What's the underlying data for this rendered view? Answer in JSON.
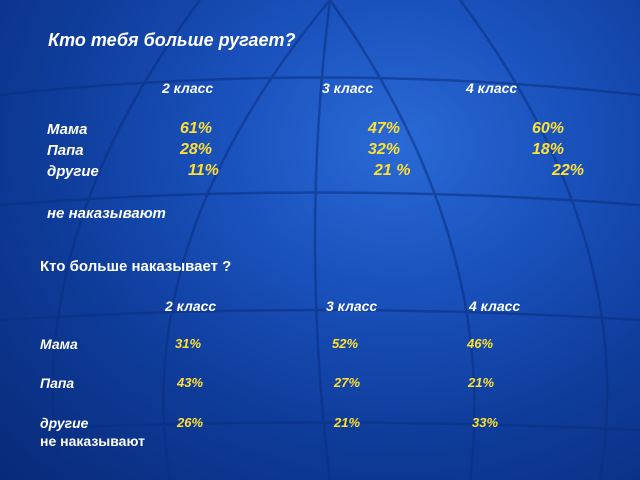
{
  "q1": {
    "title": "Кто тебя больше ругает?",
    "headers": [
      "2 класс",
      "3 класс",
      "4 класс"
    ],
    "rows": [
      {
        "label": "Мама",
        "values": [
          "61%",
          "47%",
          "60%"
        ]
      },
      {
        "label": "Папа",
        "values": [
          "28%",
          "32%",
          "18%"
        ]
      },
      {
        "label": "другие",
        "values": [
          "11%",
          "21 %",
          "22%"
        ]
      }
    ],
    "note": "не наказывают"
  },
  "q2": {
    "title": "Кто больше наказывает ?",
    "headers": [
      "2 класс",
      "3 класс",
      "4 класс"
    ],
    "rows": [
      {
        "label": "Мама",
        "values": [
          "31%",
          "52%",
          "46%"
        ]
      },
      {
        "label": "Папа",
        "values": [
          "43%",
          "27%",
          "21%"
        ]
      },
      {
        "label": "другие",
        "values": [
          "26%",
          "21%",
          "33%"
        ]
      }
    ],
    "note": "не наказывают"
  },
  "colors": {
    "background": "#1a52bd",
    "label": "#ffffff",
    "value": "#ffe033"
  }
}
